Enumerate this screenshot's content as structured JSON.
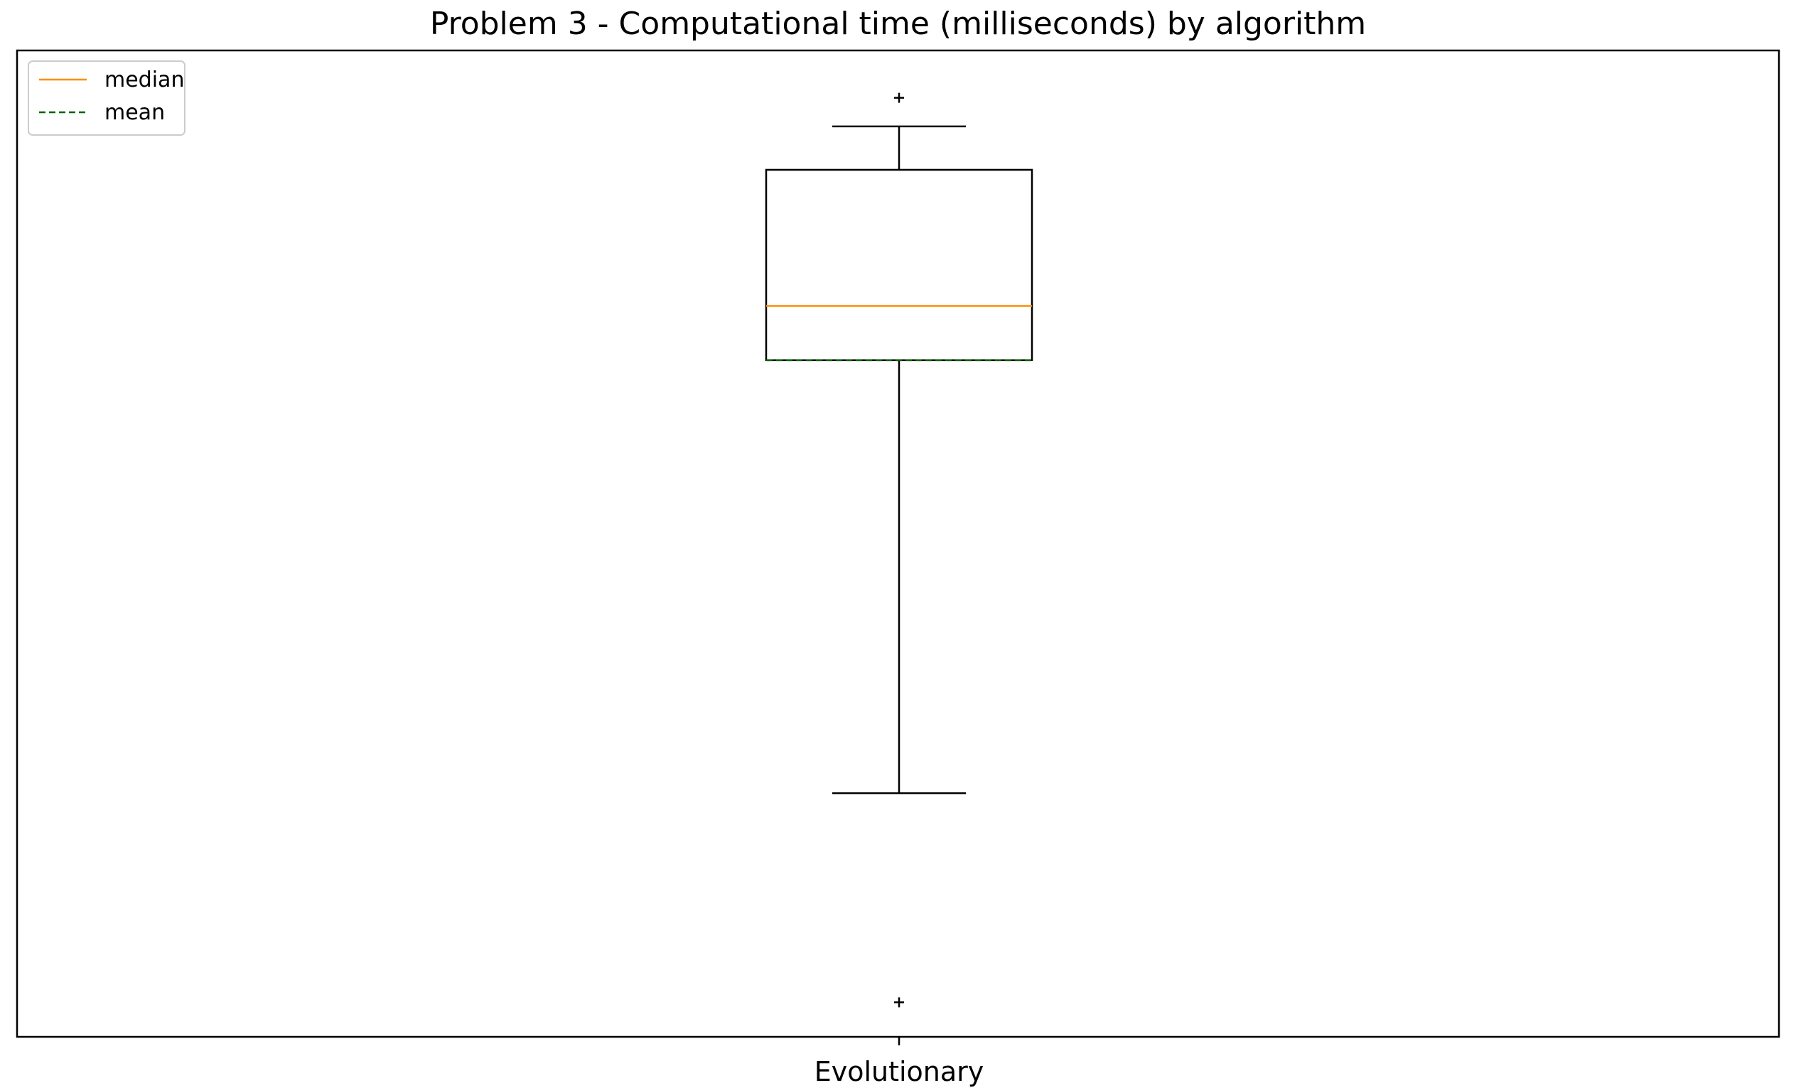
{
  "chart_data": {
    "type": "box",
    "title": "Problem 3 - Computational time (milliseconds) by algorithm",
    "xlabel": "",
    "ylabel": "",
    "categories": [
      "Evolutionary"
    ],
    "ylim": [
      0,
      100
    ],
    "boxes": [
      {
        "name": "Evolutionary",
        "whisker_low": 24.7,
        "q1": 68.6,
        "median": 74.1,
        "mean": 68.6,
        "q3": 87.9,
        "whisker_high": 92.3,
        "outliers": [
          3.5,
          95.2
        ]
      }
    ],
    "y_ticks_visible": false,
    "grid": false,
    "legend": {
      "position": "top-left",
      "entries": [
        {
          "label": "median",
          "color": "#ff8c00",
          "style": "solid"
        },
        {
          "label": "mean",
          "color": "#006400",
          "style": "dashed"
        }
      ]
    }
  }
}
